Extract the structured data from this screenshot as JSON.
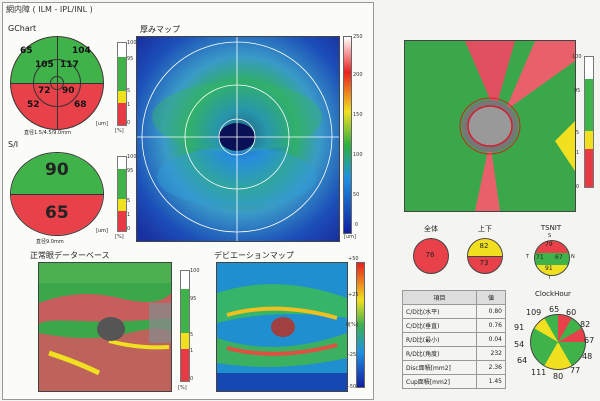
{
  "header": {
    "title": "網内障 ( ILM - IPL/INL )"
  },
  "gchart": {
    "title": "GChart",
    "values": {
      "tl": "65",
      "tr": "104",
      "ml": "105",
      "mr": "117",
      "cl": "72",
      "cr": "90",
      "bl": "52",
      "br": "68"
    },
    "caption": "直径1.5/4.5/9.0mm",
    "unit": "[um]",
    "pct": "[%]"
  },
  "si": {
    "title": "S/I",
    "superior": "90",
    "inferior": "65",
    "caption": "直径9.0mm",
    "unit": "[um]",
    "pct": "[%]"
  },
  "thickness_map": {
    "title": "厚みマップ",
    "unit": "[um]",
    "ticks": [
      "250",
      "200",
      "150",
      "100",
      "50",
      "0"
    ]
  },
  "normal_db": {
    "title": "正常眼データーベース",
    "pct": "[%]"
  },
  "deviation_map": {
    "title": "デビエーションマップ",
    "ticks": [
      "+50",
      "+25",
      "0[%]",
      "-25",
      "-50"
    ]
  },
  "pct_ticks": [
    "100",
    "95",
    "5",
    "1",
    "0"
  ],
  "summary": {
    "zentai": {
      "label": "全体",
      "value": "76"
    },
    "joge": {
      "label": "上下",
      "upper": "82",
      "lower": "73"
    },
    "tsnit": {
      "label": "TSNIT",
      "s": "79",
      "t": "71",
      "n": "67",
      "i": "91",
      "lt": "T",
      "ln": "N",
      "ls": "S",
      "li": "I"
    }
  },
  "clockhour": {
    "label": "ClockHour",
    "values": [
      "65",
      "60",
      "82",
      "67",
      "48",
      "77",
      "80",
      "111",
      "64",
      "54",
      "91",
      "109"
    ]
  },
  "results_table": {
    "head": [
      "項目",
      "値"
    ],
    "rows": [
      [
        "C/D比(水平)",
        "0.80"
      ],
      [
        "C/D比(垂直)",
        "0.76"
      ],
      [
        "R/D比(最小)",
        "0.04"
      ],
      [
        "R/D比(角度)",
        "232"
      ],
      [
        "Disc面積[mm2]",
        "2.36"
      ],
      [
        "Cup面積[mm2]",
        "1.45"
      ]
    ]
  },
  "colors": {
    "green": "#3fb34a",
    "yellow": "#f0e020",
    "red": "#e83a45",
    "blue": "#2233aa"
  }
}
